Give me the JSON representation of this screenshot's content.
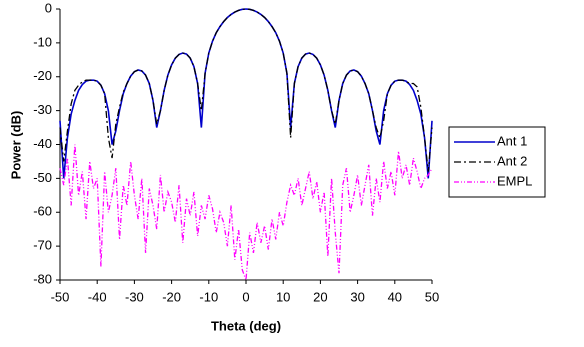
{
  "chart_data": {
    "type": "line",
    "x_label": "Theta (deg)",
    "y_label": "Power (dB)",
    "x": [
      -50,
      -49,
      -48,
      -47,
      -46,
      -45,
      -44,
      -43,
      -42,
      -41,
      -40,
      -39,
      -38,
      -37,
      -36,
      -35,
      -34,
      -33,
      -32,
      -31,
      -30,
      -29,
      -28,
      -27,
      -26,
      -25,
      -24,
      -23,
      -22,
      -21,
      -20,
      -19,
      -18,
      -17,
      -16,
      -15,
      -14,
      -13,
      -12,
      -11,
      -10,
      -9,
      -8,
      -7,
      -6,
      -5,
      -4,
      -3,
      -2,
      -1,
      0,
      1,
      2,
      3,
      4,
      5,
      6,
      7,
      8,
      9,
      10,
      11,
      12,
      13,
      14,
      15,
      16,
      17,
      18,
      19,
      20,
      21,
      22,
      23,
      24,
      25,
      26,
      27,
      28,
      29,
      30,
      31,
      32,
      33,
      34,
      35,
      36,
      37,
      38,
      39,
      40,
      41,
      42,
      43,
      44,
      45,
      46,
      47,
      48,
      49,
      50
    ],
    "series": [
      {
        "name": "Ant 1",
        "color": "#0000cc",
        "values": [
          -33,
          -50,
          -38,
          -31,
          -27,
          -24,
          -22.3,
          -21.3,
          -21,
          -21,
          -21.3,
          -22.5,
          -25,
          -30,
          -40,
          -36,
          -30,
          -25,
          -22,
          -19.8,
          -18.5,
          -18,
          -18.3,
          -19.5,
          -22,
          -27,
          -35,
          -30,
          -24,
          -19.5,
          -16.5,
          -14.5,
          -13.4,
          -13,
          -13.3,
          -14.5,
          -17,
          -22,
          -35,
          -19,
          -13,
          -9.5,
          -7,
          -5.2,
          -3.7,
          -2.5,
          -1.6,
          -0.9,
          -0.4,
          -0.1,
          0,
          -0.1,
          -0.4,
          -0.9,
          -1.6,
          -2.5,
          -3.7,
          -5.2,
          -7,
          -9.5,
          -13,
          -19,
          -35,
          -22,
          -17,
          -14.5,
          -13.3,
          -13,
          -13.4,
          -14.5,
          -16.5,
          -19.5,
          -24,
          -30,
          -35,
          -27,
          -22,
          -19.5,
          -18.3,
          -18,
          -18.5,
          -19.8,
          -22,
          -25,
          -30,
          -36,
          -40,
          -30,
          -25,
          -22.5,
          -21.3,
          -21,
          -21,
          -21.3,
          -22.3,
          -24,
          -27,
          -31,
          -38,
          -50,
          -33
        ]
      },
      {
        "name": "Ant 2",
        "color": "#000000",
        "values": [
          -35,
          -45,
          -36,
          -28,
          -24,
          -22.5,
          -21.5,
          -21,
          -21,
          -21,
          -21.3,
          -22.5,
          -25,
          -38,
          -44,
          -34,
          -29,
          -24.5,
          -22,
          -19.8,
          -18.5,
          -18,
          -18.3,
          -19.5,
          -22,
          -27,
          -34,
          -30,
          -24,
          -19.5,
          -16.5,
          -14.5,
          -13.4,
          -13,
          -13.3,
          -14.5,
          -17,
          -22,
          -30,
          -19,
          -13,
          -9.5,
          -7,
          -5.2,
          -3.7,
          -2.5,
          -1.6,
          -0.9,
          -0.4,
          -0.1,
          0,
          -0.1,
          -0.4,
          -0.9,
          -1.6,
          -2.5,
          -3.7,
          -5.2,
          -7,
          -9.5,
          -13,
          -19,
          -38,
          -22,
          -17,
          -14.5,
          -13.3,
          -13,
          -13.4,
          -14.5,
          -16.5,
          -19.5,
          -24,
          -30,
          -34,
          -27,
          -22,
          -19.5,
          -18.3,
          -18,
          -18.5,
          -19.8,
          -22,
          -25,
          -30,
          -35,
          -38,
          -33,
          -25,
          -22.5,
          -21.3,
          -21,
          -21,
          -21.3,
          -22,
          -22,
          -23,
          -29,
          -38,
          -48,
          -35
        ]
      },
      {
        "name": "EMPL",
        "color": "#ff00ff",
        "values": [
          -47,
          -52,
          -44,
          -58,
          -40,
          -55,
          -48,
          -62,
          -45,
          -53,
          -50,
          -76,
          -48,
          -60,
          -55,
          -47,
          -68,
          -52,
          -58,
          -45,
          -55,
          -62,
          -50,
          -72,
          -53,
          -58,
          -65,
          -49,
          -60,
          -54,
          -57,
          -63,
          -52,
          -69,
          -56,
          -61,
          -54,
          -67,
          -58,
          -62,
          -55,
          -59,
          -66,
          -60,
          -63,
          -70,
          -58,
          -74,
          -65,
          -77,
          -80,
          -66,
          -72,
          -63,
          -69,
          -64,
          -71,
          -62,
          -68,
          -60,
          -64,
          -57,
          -52,
          -55,
          -50,
          -58,
          -53,
          -48,
          -56,
          -51,
          -60,
          -54,
          -73,
          -50,
          -66,
          -78,
          -52,
          -47,
          -60,
          -55,
          -49,
          -58,
          -52,
          -46,
          -61,
          -50,
          -57,
          -45,
          -53,
          -48,
          -55,
          -42,
          -50,
          -46,
          -52,
          -44,
          -48,
          -53,
          -50,
          -49,
          -47
        ]
      }
    ],
    "xlim": [
      -50,
      50
    ],
    "xticks": [
      -50,
      -40,
      -30,
      -20,
      -10,
      0,
      10,
      20,
      30,
      40,
      50
    ],
    "ylim": [
      -80,
      0
    ],
    "yticks": [
      0,
      -10,
      -20,
      -30,
      -40,
      -50,
      -60,
      -70,
      -80
    ],
    "grid": false,
    "legend": "right"
  }
}
